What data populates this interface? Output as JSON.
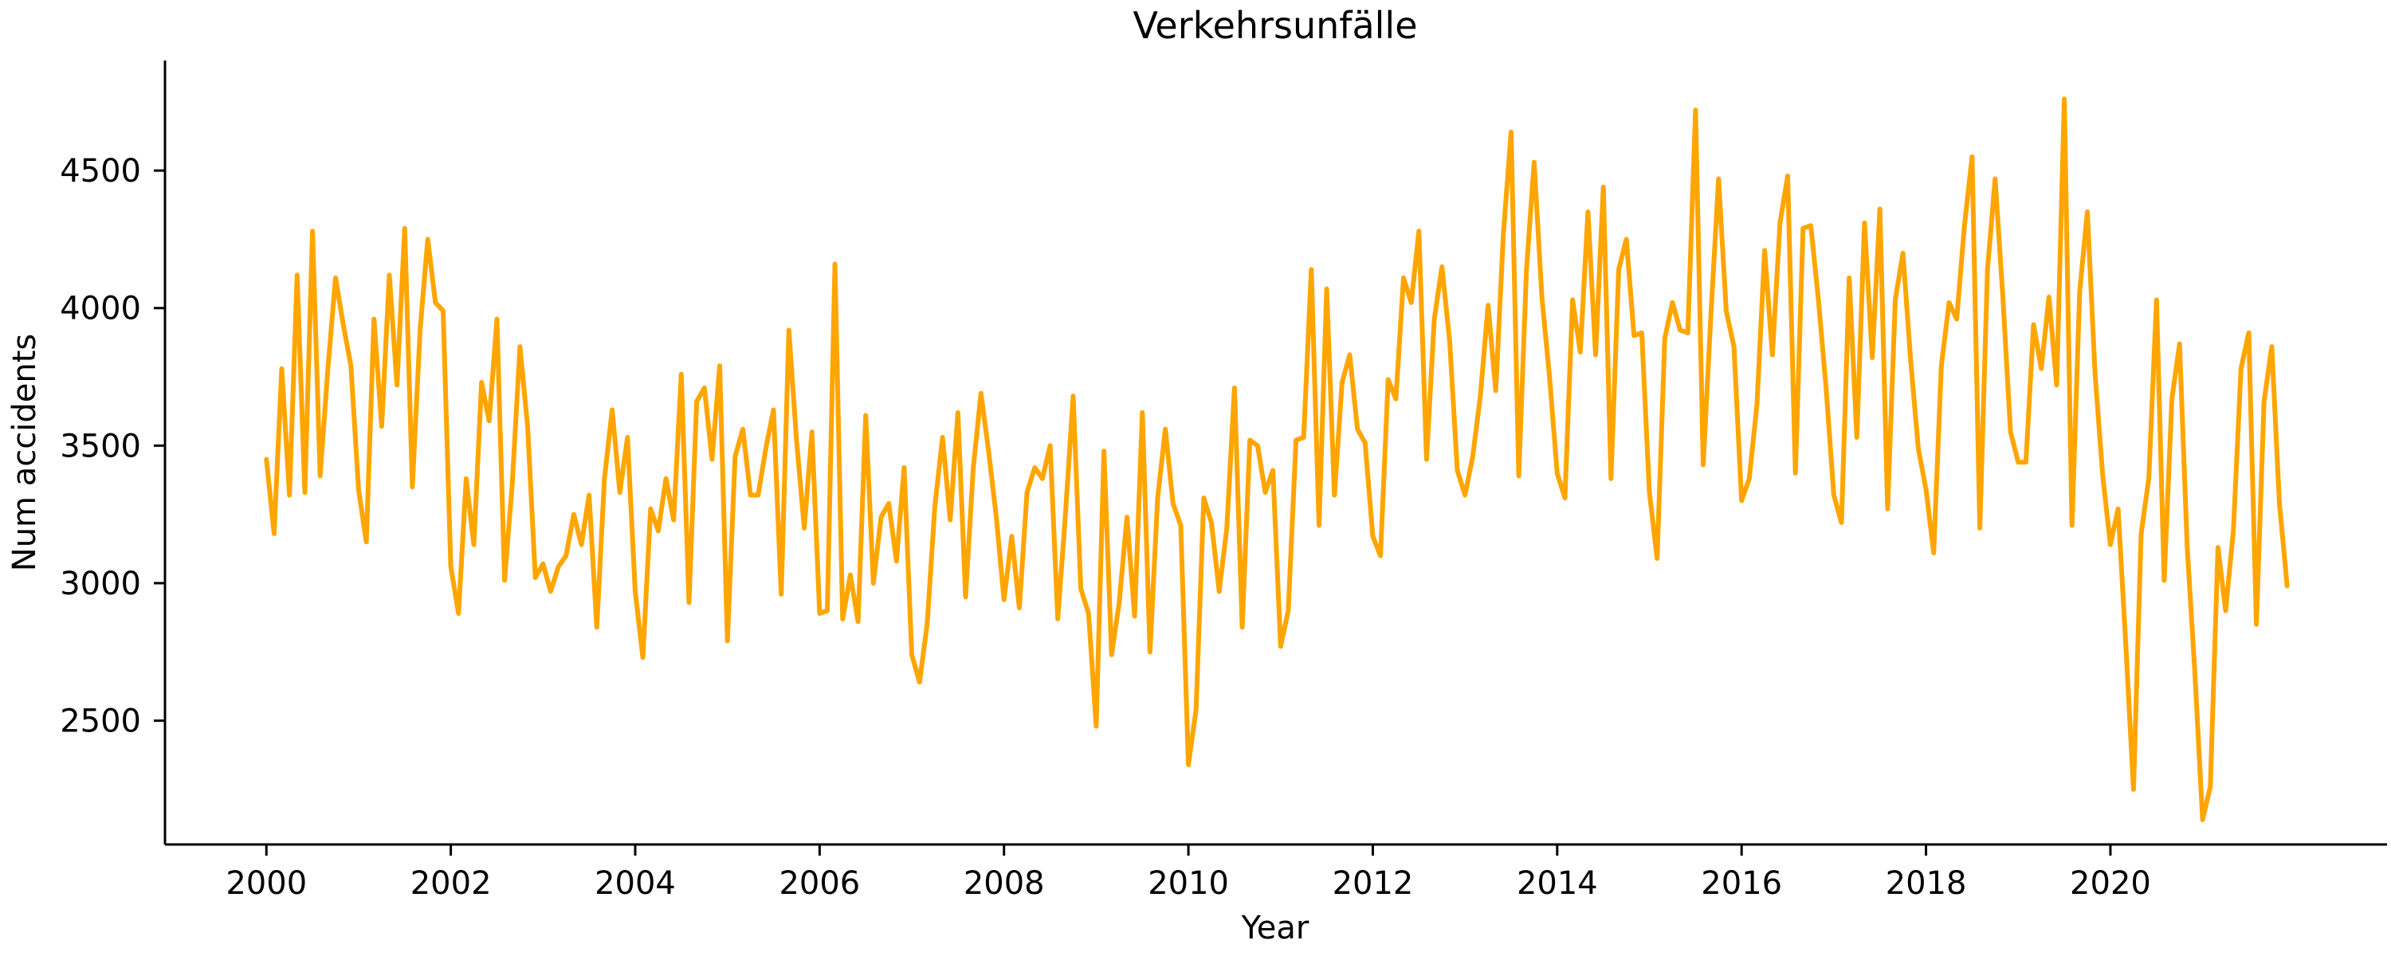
{
  "chart_data": {
    "type": "line",
    "title": "Verkehrsunfälle",
    "xlabel": "Year",
    "ylabel": "Num accidents",
    "xlim": [
      1998.9,
      2023.0
    ],
    "ylim": [
      2050,
      4900
    ],
    "xticks": [
      2000,
      2002,
      2004,
      2006,
      2008,
      2010,
      2012,
      2014,
      2016,
      2018,
      2020
    ],
    "xtick_labels": [
      "2000",
      "2002",
      "2004",
      "2006",
      "2008",
      "2010",
      "2012",
      "2014",
      "2016",
      "2018",
      "2020"
    ],
    "yticks": [
      2500,
      3000,
      3500,
      4000,
      4500
    ],
    "ytick_labels": [
      "2500",
      "3000",
      "3500",
      "4000",
      "4500"
    ],
    "grid": false,
    "legend": "none",
    "series": [
      {
        "color": "#FFA500",
        "x_start": 2000.0,
        "x_step": 0.083333,
        "values": [
          3450,
          3180,
          3780,
          3320,
          4120,
          3330,
          4280,
          3390,
          3780,
          4110,
          3940,
          3790,
          3340,
          3150,
          3960,
          3570,
          4120,
          3720,
          4290,
          3350,
          3920,
          4250,
          4020,
          3990,
          3060,
          2890,
          3380,
          3140,
          3730,
          3590,
          3960,
          3010,
          3360,
          3860,
          3570,
          3020,
          3070,
          2970,
          3060,
          3100,
          3250,
          3140,
          3320,
          2840,
          3380,
          3630,
          3330,
          3530,
          2970,
          2730,
          3270,
          3190,
          3380,
          3230,
          3760,
          2930,
          3660,
          3710,
          3450,
          3790,
          2790,
          3460,
          3560,
          3320,
          3320,
          3490,
          3630,
          2960,
          3920,
          3520,
          3200,
          3550,
          2890,
          2900,
          4160,
          2870,
          3030,
          2860,
          3610,
          3000,
          3240,
          3290,
          3080,
          3420,
          2740,
          2640,
          2850,
          3280,
          3530,
          3230,
          3620,
          2950,
          3420,
          3690,
          3480,
          3240,
          2940,
          3170,
          2910,
          3330,
          3420,
          3380,
          3500,
          2870,
          3250,
          3680,
          2980,
          2890,
          2480,
          3480,
          2740,
          2930,
          3240,
          2880,
          3620,
          2750,
          3310,
          3560,
          3290,
          3210,
          2340,
          2540,
          3310,
          3220,
          2970,
          3200,
          3710,
          2840,
          3520,
          3500,
          3330,
          3410,
          2770,
          2900,
          3520,
          3530,
          4140,
          3210,
          4070,
          3320,
          3730,
          3830,
          3560,
          3510,
          3170,
          3100,
          3740,
          3670,
          4110,
          4020,
          4280,
          3450,
          3960,
          4150,
          3880,
          3410,
          3320,
          3460,
          3680,
          4010,
          3700,
          4270,
          4640,
          3390,
          4140,
          4530,
          4040,
          3750,
          3400,
          3310,
          4030,
          3840,
          4350,
          3830,
          4440,
          3380,
          4140,
          4250,
          3900,
          3910,
          3330,
          3090,
          3890,
          4020,
          3920,
          3910,
          4720,
          3430,
          3970,
          4470,
          3990,
          3860,
          3300,
          3380,
          3650,
          4210,
          3830,
          4310,
          4480,
          3400,
          4290,
          4300,
          4030,
          3710,
          3320,
          3220,
          4110,
          3530,
          4310,
          3820,
          4360,
          3270,
          4030,
          4200,
          3810,
          3490,
          3340,
          3110,
          3790,
          4020,
          3960,
          4300,
          4550,
          3200,
          4140,
          4470,
          4040,
          3550,
          3440,
          3440,
          3940,
          3780,
          4040,
          3720,
          4760,
          3210,
          4060,
          4350,
          3760,
          3390,
          3140,
          3270,
          2780,
          2250,
          3180,
          3380,
          4030,
          3010,
          3670,
          3870,
          3130,
          2670,
          2140,
          2260,
          3130,
          2900,
          3190,
          3780,
          3910,
          2850,
          3660,
          3860,
          3290,
          2990
        ]
      }
    ]
  }
}
